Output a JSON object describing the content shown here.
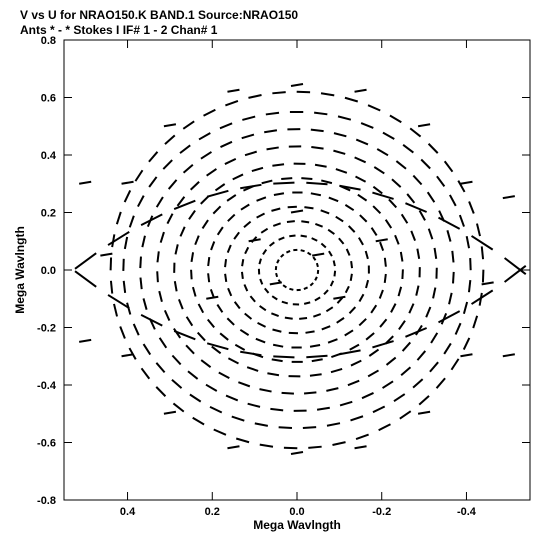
{
  "chart_data": {
    "type": "scatter",
    "title": "V vs U for NRAO150.K BAND.1   Source:NRAO150",
    "subtitle": "Ants * - *      Stokes I   IF# 1 - 2   Chan# 1",
    "xlabel": "Mega Wavlngth",
    "ylabel": "Mega Wavlngth",
    "xlim": [
      0.55,
      -0.55
    ],
    "ylim": [
      -0.8,
      0.8
    ],
    "x_reversed": true,
    "x_ticks": [
      0.4,
      0.2,
      0.0,
      -0.2,
      -0.4
    ],
    "x_tick_labels": [
      "0.4",
      "0.2",
      "0.0",
      "-0.2",
      "-0.4"
    ],
    "y_ticks": [
      0.8,
      0.6,
      0.4,
      0.2,
      0.0,
      -0.2,
      -0.4,
      -0.6,
      -0.8
    ],
    "y_tick_labels": [
      "0.8",
      "0.6",
      "0.4",
      "0.2",
      "0.0",
      "-0.2",
      "-0.4",
      "-0.6",
      "-0.8"
    ],
    "grid": false,
    "mark_color": "#000000",
    "points": [
      [
        0.0,
        0.64
      ],
      [
        0.15,
        0.62
      ],
      [
        -0.15,
        0.62
      ],
      [
        0.3,
        0.5
      ],
      [
        -0.3,
        0.5
      ],
      [
        0.4,
        0.3
      ],
      [
        -0.4,
        0.3
      ],
      [
        0.45,
        0.05
      ],
      [
        -0.45,
        -0.05
      ],
      [
        0.4,
        -0.3
      ],
      [
        -0.4,
        -0.3
      ],
      [
        0.3,
        -0.5
      ],
      [
        -0.3,
        -0.5
      ],
      [
        0.15,
        -0.62
      ],
      [
        -0.15,
        -0.62
      ],
      [
        0.0,
        -0.64
      ],
      [
        0.0,
        0.2
      ],
      [
        0.05,
        -0.05
      ],
      [
        -0.05,
        0.05
      ],
      [
        0.1,
        0.1
      ],
      [
        -0.1,
        -0.1
      ],
      [
        0.2,
        -0.1
      ],
      [
        -0.2,
        0.1
      ],
      [
        0.5,
        0.3
      ],
      [
        -0.5,
        -0.3
      ],
      [
        0.5,
        -0.25
      ],
      [
        -0.5,
        0.25
      ]
    ]
  }
}
